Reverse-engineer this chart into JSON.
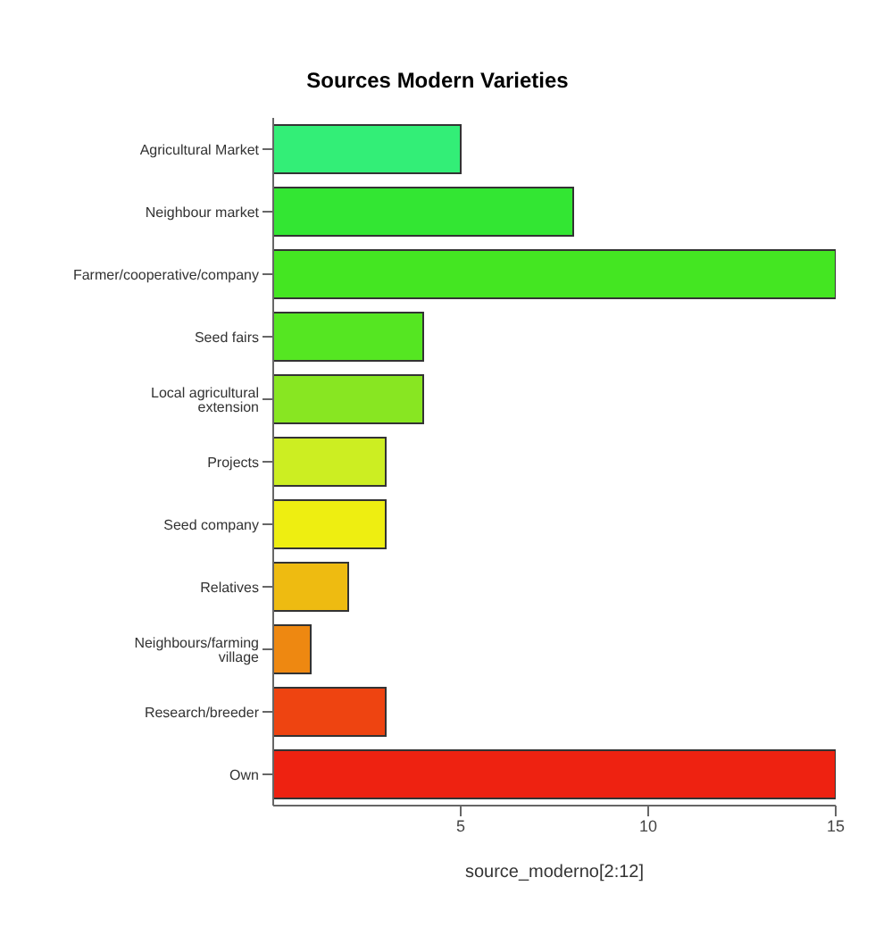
{
  "chart_data": {
    "type": "bar",
    "orientation": "horizontal",
    "title": "Sources Modern Varieties",
    "xlabel": "source_moderno[2:12]",
    "categories": [
      "Agricultural Market",
      "Neighbour market",
      "Farmer/cooperative/company",
      "Seed fairs",
      "Local agricultural extension",
      "Projects",
      "Seed company",
      "Relatives",
      "Neighbours/farming village",
      "Research/breeder",
      "Own"
    ],
    "values": [
      5,
      8,
      15,
      4,
      4,
      3,
      3,
      2,
      1,
      3,
      15
    ],
    "colors": [
      "#33ee77",
      "#33e633",
      "#44e622",
      "#55e622",
      "#88e622",
      "#ccee22",
      "#eeee11",
      "#eebb11",
      "#ee8811",
      "#ee4411",
      "#ee2211"
    ],
    "xlim": [
      0,
      15
    ],
    "xticks": [
      5,
      10,
      15
    ],
    "grid": false
  }
}
